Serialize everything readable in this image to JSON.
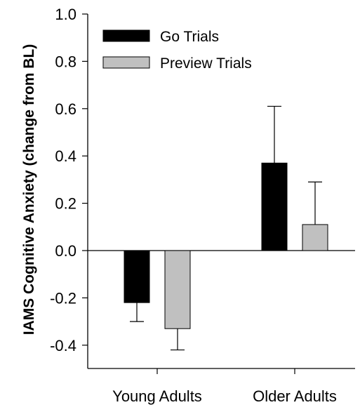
{
  "chart_data": {
    "type": "bar",
    "title": "",
    "xlabel": "",
    "ylabel": "IAMS Cognitive Anxiety (change from BL)",
    "categories": [
      "Young Adults",
      "Older Adults"
    ],
    "series": [
      {
        "name": "Go Trials",
        "color": "#000000",
        "values": [
          -0.22,
          0.37
        ],
        "errors": [
          0.08,
          0.24
        ]
      },
      {
        "name": "Preview Trials",
        "color": "#c0c0c0",
        "values": [
          -0.33,
          0.11
        ],
        "errors": [
          0.09,
          0.18
        ]
      }
    ],
    "ylim": [
      -0.5,
      1.0
    ],
    "yticks": [
      1.0,
      0.8,
      0.6,
      0.4,
      0.2,
      0.0,
      -0.2,
      -0.4
    ],
    "ytick_labels": [
      "1.0",
      "0.8",
      "0.6",
      "0.4",
      "0.2",
      "0.0",
      "-0.2",
      "-0.4"
    ],
    "grid": false,
    "legend_position": "top-left",
    "error_bars": "one-sided"
  }
}
